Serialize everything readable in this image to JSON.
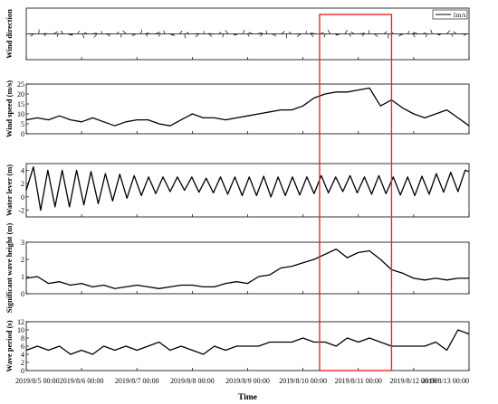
{
  "chart_data": {
    "type": "line",
    "xlabel": "Time",
    "x_ticks": [
      "2019/8/5 00:00",
      "2019/8/6 00:00",
      "2019/8/7 00:00",
      "2019/8/8 00:00",
      "2019/8/9 00:00",
      "2019/8/10 00:00",
      "2019/8/11 00:00",
      "2019/8/12 00:00",
      "2019/8/13 00:00"
    ],
    "x_days": [
      0,
      8
    ],
    "highlight_days": [
      5.3,
      6.6
    ],
    "highlight_color": "#e8262c",
    "line_color": "#000000",
    "panels": [
      {
        "id": "wind-direction",
        "type": "vector",
        "ylabel": "Wind direction",
        "legend": "1m/s",
        "yticks": []
      },
      {
        "id": "wind-speed",
        "type": "line",
        "ylabel": "Wind speed (m/s)",
        "ylim": [
          0,
          25
        ],
        "yticks": [
          0,
          5,
          10,
          15,
          20,
          25
        ],
        "x": [
          0,
          0.2,
          0.4,
          0.6,
          0.8,
          1.0,
          1.2,
          1.4,
          1.6,
          1.8,
          2.0,
          2.2,
          2.4,
          2.6,
          2.8,
          3.0,
          3.2,
          3.4,
          3.6,
          3.8,
          4.0,
          4.2,
          4.4,
          4.6,
          4.8,
          5.0,
          5.2,
          5.4,
          5.6,
          5.8,
          6.0,
          6.2,
          6.4,
          6.6,
          6.8,
          7.0,
          7.2,
          7.4,
          7.6,
          7.8,
          8.0
        ],
        "y": [
          7,
          8,
          7,
          9,
          7,
          6,
          8,
          6,
          4,
          6,
          7,
          7,
          5,
          4,
          7,
          10,
          8,
          8,
          7,
          8,
          9,
          10,
          11,
          12,
          12,
          14,
          18,
          20,
          21,
          21,
          22,
          23,
          14,
          17,
          13,
          10,
          8,
          10,
          12,
          8,
          4
        ]
      },
      {
        "id": "water-level",
        "type": "line",
        "ylabel": "Water lever (m)",
        "ylim": [
          -3,
          5
        ],
        "yticks": [
          -2,
          0,
          2,
          4
        ],
        "x": [
          0,
          0.13,
          0.26,
          0.39,
          0.52,
          0.65,
          0.78,
          0.91,
          1.04,
          1.17,
          1.3,
          1.43,
          1.56,
          1.69,
          1.82,
          1.95,
          2.08,
          2.21,
          2.34,
          2.47,
          2.6,
          2.73,
          2.86,
          2.99,
          3.12,
          3.25,
          3.38,
          3.51,
          3.64,
          3.77,
          3.9,
          4.03,
          4.16,
          4.29,
          4.42,
          4.55,
          4.68,
          4.81,
          4.94,
          5.07,
          5.2,
          5.33,
          5.46,
          5.59,
          5.72,
          5.85,
          5.98,
          6.11,
          6.24,
          6.37,
          6.5,
          6.63,
          6.76,
          6.89,
          7.02,
          7.15,
          7.28,
          7.41,
          7.54,
          7.67,
          7.8,
          7.93,
          8.0
        ],
        "y": [
          1,
          4.5,
          -2,
          4,
          -1.5,
          4,
          -1.5,
          4,
          -1.2,
          3.8,
          -1,
          3.5,
          -0.6,
          3.4,
          -0.2,
          3.2,
          0.2,
          3,
          0.5,
          3,
          0.8,
          3,
          1,
          3,
          0.7,
          2.8,
          0.6,
          3,
          0.4,
          3,
          0.2,
          3,
          0.2,
          3.1,
          0,
          3,
          0.2,
          3,
          0.3,
          3,
          0.5,
          3.2,
          0.6,
          3,
          0.8,
          3.2,
          0.6,
          3,
          0.4,
          3.2,
          0.5,
          3,
          0.3,
          3,
          0.2,
          3.1,
          0.4,
          3.5,
          0.7,
          3.7,
          0.8,
          4,
          3.8
        ]
      },
      {
        "id": "wave-height",
        "type": "line",
        "ylabel": "Significant wave height (m)",
        "ylim": [
          0,
          3
        ],
        "yticks": [
          0,
          1,
          2,
          3
        ],
        "x": [
          0,
          0.2,
          0.4,
          0.6,
          0.8,
          1.0,
          1.2,
          1.4,
          1.6,
          1.8,
          2.0,
          2.2,
          2.4,
          2.6,
          2.8,
          3.0,
          3.2,
          3.4,
          3.6,
          3.8,
          4.0,
          4.2,
          4.4,
          4.6,
          4.8,
          5.0,
          5.2,
          5.4,
          5.6,
          5.8,
          6.0,
          6.2,
          6.4,
          6.6,
          6.8,
          7.0,
          7.2,
          7.4,
          7.6,
          7.8,
          8.0
        ],
        "y": [
          0.9,
          1.0,
          0.6,
          0.7,
          0.5,
          0.6,
          0.4,
          0.5,
          0.3,
          0.4,
          0.5,
          0.4,
          0.3,
          0.4,
          0.5,
          0.5,
          0.4,
          0.4,
          0.6,
          0.7,
          0.6,
          1.0,
          1.1,
          1.5,
          1.6,
          1.8,
          2.0,
          2.3,
          2.6,
          2.1,
          2.4,
          2.5,
          2.0,
          1.4,
          1.2,
          0.9,
          0.8,
          0.9,
          0.8,
          0.9,
          0.9
        ]
      },
      {
        "id": "wave-period",
        "type": "line",
        "ylabel": "Wave period (s)",
        "ylim": [
          0,
          12
        ],
        "yticks": [
          0,
          2,
          4,
          6,
          8,
          10,
          12
        ],
        "x": [
          0,
          0.2,
          0.4,
          0.6,
          0.8,
          1.0,
          1.2,
          1.4,
          1.6,
          1.8,
          2.0,
          2.2,
          2.4,
          2.6,
          2.8,
          3.0,
          3.2,
          3.4,
          3.6,
          3.8,
          4.0,
          4.2,
          4.4,
          4.6,
          4.8,
          5.0,
          5.2,
          5.4,
          5.6,
          5.8,
          6.0,
          6.2,
          6.4,
          6.6,
          6.8,
          7.0,
          7.2,
          7.4,
          7.6,
          7.8,
          8.0
        ],
        "y": [
          5,
          6,
          5,
          6,
          4,
          5,
          4,
          6,
          5,
          6,
          5,
          6,
          7,
          5,
          6,
          5,
          4,
          6,
          5,
          6,
          6,
          6,
          7,
          7,
          7,
          8,
          7,
          7,
          6,
          8,
          7,
          8,
          7,
          6,
          6,
          6,
          6,
          7,
          5,
          10,
          9
        ]
      }
    ]
  }
}
